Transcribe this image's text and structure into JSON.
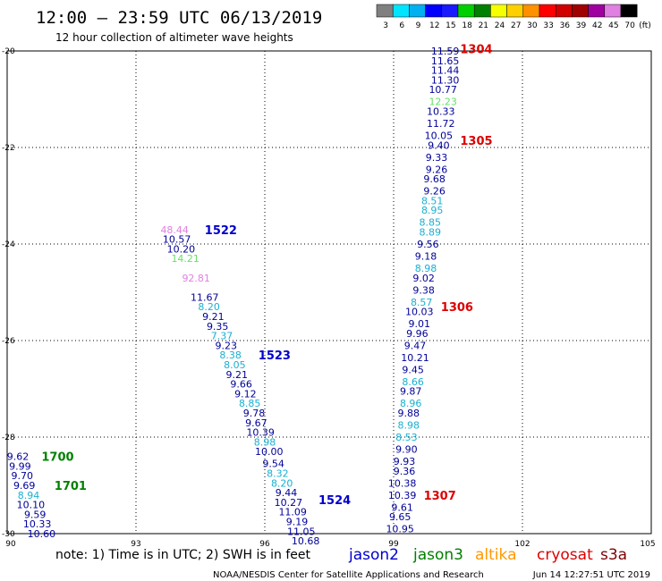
{
  "header": {
    "title": "12:00 – 23:59 UTC 06/13/2019",
    "subtitle": "12 hour collection of altimeter wave heights"
  },
  "scale": {
    "labels": [
      "3",
      "6",
      "9",
      "12",
      "15",
      "18",
      "21",
      "24",
      "27",
      "30",
      "33",
      "36",
      "39",
      "42",
      "45",
      "70"
    ],
    "unit": "(ft)",
    "colors": [
      "#808080",
      "#00e5ff",
      "#00b0f0",
      "#0000ff",
      "#1a1aff",
      "#00d000",
      "#008000",
      "#f5ff00",
      "#ffd000",
      "#ff9000",
      "#ff0000",
      "#d00000",
      "#a00000",
      "#a000a0",
      "#e080e0",
      "#000000"
    ]
  },
  "axes": {
    "x_ticks": [
      "90",
      "93",
      "96",
      "99",
      "102",
      "105"
    ],
    "y_ticks": [
      "-20",
      "-22",
      "-24",
      "-26",
      "-28",
      "-30"
    ],
    "x_range": [
      90,
      105
    ],
    "y_range": [
      -30,
      -20
    ]
  },
  "footer": {
    "note": "note: 1) Time is in UTC; 2) SWH is in feet",
    "satellites": [
      {
        "name": "jason2",
        "color": "#0000cc"
      },
      {
        "name": "jason3",
        "color": "#008000"
      },
      {
        "name": "altika",
        "color": "#ff9900"
      },
      {
        "name": "cryosat",
        "color": "#dd0000"
      },
      {
        "name": "s3a",
        "color": "#800000"
      }
    ],
    "credit": "NOAA/NESDIS Center for Satellite Applications and Research",
    "timestamp": "Jun 14 12:27:51 UTC 2019"
  },
  "chart_data": {
    "type": "scatter",
    "title": "12:00 – 23:59 UTC 06/13/2019",
    "subtitle": "12 hour collection of altimeter wave heights",
    "xlim": [
      90,
      105
    ],
    "ylim": [
      -30,
      -20
    ],
    "grid": true,
    "pass_labels": [
      {
        "text": "1304",
        "lon": 100.55,
        "lat": -19.95,
        "color": "#dd0000"
      },
      {
        "text": "1305",
        "lon": 100.55,
        "lat": -21.85,
        "color": "#dd0000"
      },
      {
        "text": "1306",
        "lon": 100.1,
        "lat": -25.3,
        "color": "#dd0000"
      },
      {
        "text": "1307",
        "lon": 99.7,
        "lat": -29.2,
        "color": "#dd0000"
      },
      {
        "text": "1522",
        "lon": 94.6,
        "lat": -23.7,
        "color": "#0000cc"
      },
      {
        "text": "1523",
        "lon": 95.85,
        "lat": -26.3,
        "color": "#0000cc"
      },
      {
        "text": "1524",
        "lon": 97.25,
        "lat": -29.3,
        "color": "#0000cc"
      },
      {
        "text": "1700",
        "lon": 90.8,
        "lat": -28.4,
        "color": "#008000"
      },
      {
        "text": "1701",
        "lon": 91.1,
        "lat": -29.0,
        "color": "#008000"
      }
    ],
    "series": [
      {
        "name": "1304–1307",
        "points": [
          {
            "lon": 100.2,
            "lat": -20.0,
            "v": "11.59",
            "color": "#000099"
          },
          {
            "lon": 100.2,
            "lat": -20.2,
            "v": "11.65",
            "color": "#000099"
          },
          {
            "lon": 100.2,
            "lat": -20.4,
            "v": "11.44",
            "color": "#000099"
          },
          {
            "lon": 100.2,
            "lat": -20.6,
            "v": "11.30",
            "color": "#000099"
          },
          {
            "lon": 100.15,
            "lat": -20.8,
            "v": "10.77",
            "color": "#000099"
          },
          {
            "lon": 100.15,
            "lat": -21.05,
            "v": "12.23",
            "color": "#66e066"
          },
          {
            "lon": 100.1,
            "lat": -21.25,
            "v": "10.33",
            "color": "#000099"
          },
          {
            "lon": 100.1,
            "lat": -21.5,
            "v": "11.72",
            "color": "#000099"
          },
          {
            "lon": 100.05,
            "lat": -21.75,
            "v": "10.05",
            "color": "#000099"
          },
          {
            "lon": 100.05,
            "lat": -21.95,
            "v": "9.40",
            "color": "#000099"
          },
          {
            "lon": 100.0,
            "lat": -22.2,
            "v": "9.33",
            "color": "#000099"
          },
          {
            "lon": 100.0,
            "lat": -22.45,
            "v": "9.26",
            "color": "#000099"
          },
          {
            "lon": 99.95,
            "lat": -22.65,
            "v": "9.68",
            "color": "#000099"
          },
          {
            "lon": 99.95,
            "lat": -22.9,
            "v": "9.26",
            "color": "#000099"
          },
          {
            "lon": 99.9,
            "lat": -23.1,
            "v": "8.51",
            "color": "#1ab0d0"
          },
          {
            "lon": 99.9,
            "lat": -23.3,
            "v": "8.95",
            "color": "#1ab0d0"
          },
          {
            "lon": 99.85,
            "lat": -23.55,
            "v": "8.85",
            "color": "#1ab0d0"
          },
          {
            "lon": 99.85,
            "lat": -23.75,
            "v": "8.89",
            "color": "#1ab0d0"
          },
          {
            "lon": 99.8,
            "lat": -24.0,
            "v": "9.56",
            "color": "#000099"
          },
          {
            "lon": 99.75,
            "lat": -24.25,
            "v": "9.18",
            "color": "#000099"
          },
          {
            "lon": 99.75,
            "lat": -24.5,
            "v": "8.98",
            "color": "#1ab0d0"
          },
          {
            "lon": 99.7,
            "lat": -24.7,
            "v": "9.02",
            "color": "#000099"
          },
          {
            "lon": 99.7,
            "lat": -24.95,
            "v": "9.38",
            "color": "#000099"
          },
          {
            "lon": 99.65,
            "lat": -25.2,
            "v": "8.57",
            "color": "#1ab0d0"
          },
          {
            "lon": 99.6,
            "lat": -25.4,
            "v": "10.03",
            "color": "#000099"
          },
          {
            "lon": 99.6,
            "lat": -25.65,
            "v": "9.01",
            "color": "#000099"
          },
          {
            "lon": 99.55,
            "lat": -25.85,
            "v": "9.96",
            "color": "#000099"
          },
          {
            "lon": 99.5,
            "lat": -26.1,
            "v": "9.47",
            "color": "#000099"
          },
          {
            "lon": 99.5,
            "lat": -26.35,
            "v": "10.21",
            "color": "#000099"
          },
          {
            "lon": 99.45,
            "lat": -26.6,
            "v": "9.45",
            "color": "#000099"
          },
          {
            "lon": 99.45,
            "lat": -26.85,
            "v": "8.66",
            "color": "#1ab0d0"
          },
          {
            "lon": 99.4,
            "lat": -27.05,
            "v": "9.87",
            "color": "#000099"
          },
          {
            "lon": 99.4,
            "lat": -27.3,
            "v": "8.96",
            "color": "#1ab0d0"
          },
          {
            "lon": 99.35,
            "lat": -27.5,
            "v": "9.88",
            "color": "#000099"
          },
          {
            "lon": 99.35,
            "lat": -27.75,
            "v": "8.98",
            "color": "#1ab0d0"
          },
          {
            "lon": 99.3,
            "lat": -28.0,
            "v": "8.53",
            "color": "#1ab0d0"
          },
          {
            "lon": 99.3,
            "lat": -28.25,
            "v": "9.90",
            "color": "#000099"
          },
          {
            "lon": 99.25,
            "lat": -28.5,
            "v": "9.93",
            "color": "#000099"
          },
          {
            "lon": 99.25,
            "lat": -28.7,
            "v": "9.36",
            "color": "#000099"
          },
          {
            "lon": 99.2,
            "lat": -28.95,
            "v": "10.38",
            "color": "#000099"
          },
          {
            "lon": 99.2,
            "lat": -29.2,
            "v": "10.39",
            "color": "#000099"
          },
          {
            "lon": 99.2,
            "lat": -29.45,
            "v": "9.61",
            "color": "#000099"
          },
          {
            "lon": 99.15,
            "lat": -29.65,
            "v": "9.65",
            "color": "#000099"
          },
          {
            "lon": 99.15,
            "lat": -29.9,
            "v": "10.95",
            "color": "#000099"
          }
        ]
      },
      {
        "name": "1522–1524",
        "points": [
          {
            "lon": 93.9,
            "lat": -23.7,
            "v": "48.44",
            "color": "#e080e0"
          },
          {
            "lon": 93.95,
            "lat": -23.9,
            "v": "10.57",
            "color": "#000099"
          },
          {
            "lon": 94.05,
            "lat": -24.1,
            "v": "10.20",
            "color": "#000099"
          },
          {
            "lon": 94.15,
            "lat": -24.3,
            "v": "14.21",
            "color": "#66e066"
          },
          {
            "lon": 94.4,
            "lat": -24.7,
            "v": "92.81",
            "color": "#e080e0"
          },
          {
            "lon": 94.6,
            "lat": -25.1,
            "v": "11.67",
            "color": "#000099"
          },
          {
            "lon": 94.7,
            "lat": -25.3,
            "v": "8.20",
            "color": "#1ab0d0"
          },
          {
            "lon": 94.8,
            "lat": -25.5,
            "v": "9.21",
            "color": "#000099"
          },
          {
            "lon": 94.9,
            "lat": -25.7,
            "v": "9.35",
            "color": "#000099"
          },
          {
            "lon": 95.0,
            "lat": -25.9,
            "v": "7.37",
            "color": "#1ab0d0"
          },
          {
            "lon": 95.1,
            "lat": -26.1,
            "v": "9.23",
            "color": "#000099"
          },
          {
            "lon": 95.2,
            "lat": -26.3,
            "v": "8.38",
            "color": "#1ab0d0"
          },
          {
            "lon": 95.3,
            "lat": -26.5,
            "v": "8.05",
            "color": "#1ab0d0"
          },
          {
            "lon": 95.35,
            "lat": -26.7,
            "v": "9.21",
            "color": "#000099"
          },
          {
            "lon": 95.45,
            "lat": -26.9,
            "v": "9.66",
            "color": "#000099"
          },
          {
            "lon": 95.55,
            "lat": -27.1,
            "v": "9.12",
            "color": "#000099"
          },
          {
            "lon": 95.65,
            "lat": -27.3,
            "v": "8.85",
            "color": "#1ab0d0"
          },
          {
            "lon": 95.75,
            "lat": -27.5,
            "v": "9.78",
            "color": "#000099"
          },
          {
            "lon": 95.8,
            "lat": -27.7,
            "v": "9.67",
            "color": "#000099"
          },
          {
            "lon": 95.9,
            "lat": -27.9,
            "v": "10.39",
            "color": "#000099"
          },
          {
            "lon": 96.0,
            "lat": -28.1,
            "v": "8.98",
            "color": "#1ab0d0"
          },
          {
            "lon": 96.1,
            "lat": -28.3,
            "v": "10.00",
            "color": "#000099"
          },
          {
            "lon": 96.2,
            "lat": -28.55,
            "v": "9.54",
            "color": "#000099"
          },
          {
            "lon": 96.3,
            "lat": -28.75,
            "v": "8.32",
            "color": "#1ab0d0"
          },
          {
            "lon": 96.4,
            "lat": -28.95,
            "v": "8.20",
            "color": "#1ab0d0"
          },
          {
            "lon": 96.5,
            "lat": -29.15,
            "v": "9.44",
            "color": "#000099"
          },
          {
            "lon": 96.55,
            "lat": -29.35,
            "v": "10.27",
            "color": "#000099"
          },
          {
            "lon": 96.65,
            "lat": -29.55,
            "v": "11.09",
            "color": "#000099"
          },
          {
            "lon": 96.75,
            "lat": -29.75,
            "v": "9.19",
            "color": "#000099"
          },
          {
            "lon": 96.85,
            "lat": -29.95,
            "v": "11.05",
            "color": "#000099"
          },
          {
            "lon": 96.95,
            "lat": -30.15,
            "v": "10.68",
            "color": "#000099"
          }
        ]
      },
      {
        "name": "1700–1701",
        "points": [
          {
            "lon": 90.25,
            "lat": -28.4,
            "v": "9.62",
            "color": "#000099"
          },
          {
            "lon": 90.3,
            "lat": -28.6,
            "v": "9.99",
            "color": "#000099"
          },
          {
            "lon": 90.35,
            "lat": -28.8,
            "v": "9.70",
            "color": "#000099"
          },
          {
            "lon": 90.4,
            "lat": -29.0,
            "v": "9.69",
            "color": "#000099"
          },
          {
            "lon": 90.5,
            "lat": -29.2,
            "v": "8.94",
            "color": "#1ab0d0"
          },
          {
            "lon": 90.55,
            "lat": -29.4,
            "v": "10.10",
            "color": "#000099"
          },
          {
            "lon": 90.65,
            "lat": -29.6,
            "v": "9.59",
            "color": "#000099"
          },
          {
            "lon": 90.7,
            "lat": -29.8,
            "v": "10.33",
            "color": "#000099"
          },
          {
            "lon": 90.8,
            "lat": -30.0,
            "v": "10.60",
            "color": "#000099"
          }
        ]
      }
    ]
  }
}
